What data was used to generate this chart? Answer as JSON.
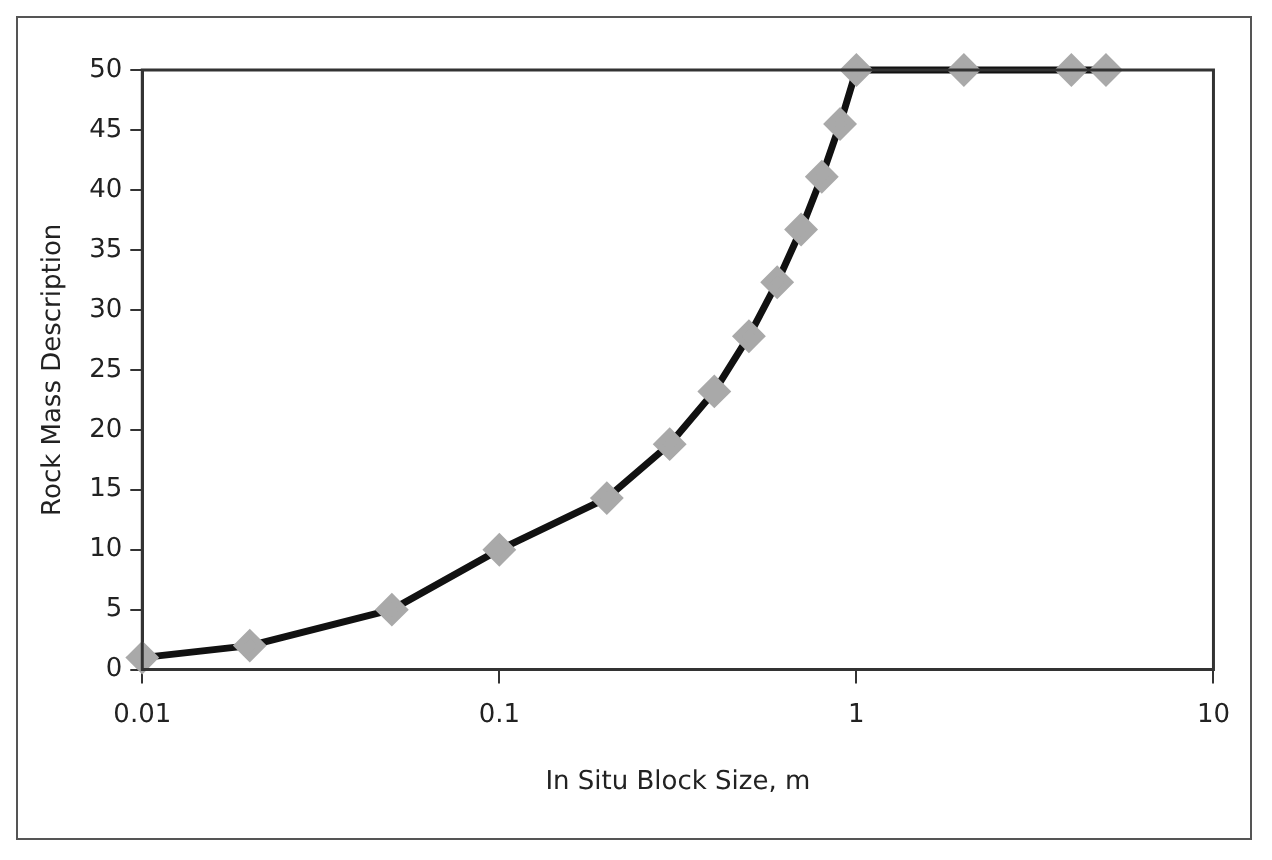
{
  "chart_data": {
    "type": "line",
    "xlabel": "In Situ Block Size, m",
    "ylabel": "Rock Mass Description",
    "x": [
      0.01,
      0.02,
      0.05,
      0.1,
      0.2,
      0.3,
      0.4,
      0.5,
      0.6,
      0.7,
      0.8,
      0.9,
      1,
      2,
      4,
      5
    ],
    "series": [
      {
        "color": "#111111",
        "values": [
          1,
          2,
          5,
          10,
          14.3,
          18.8,
          23.2,
          27.8,
          32.3,
          36.7,
          41.1,
          45.5,
          50,
          50,
          50,
          50
        ]
      }
    ],
    "log": "x",
    "xlim": [
      0.01,
      10
    ],
    "xticks": [
      0.01,
      0.1,
      1,
      10
    ],
    "ylim": [
      0,
      50
    ],
    "yticks": [
      0,
      5,
      10,
      15,
      20,
      25,
      30,
      35,
      40,
      45,
      50
    ],
    "grid": false,
    "legend": false,
    "marker": "diamond",
    "line_style": "solid"
  }
}
